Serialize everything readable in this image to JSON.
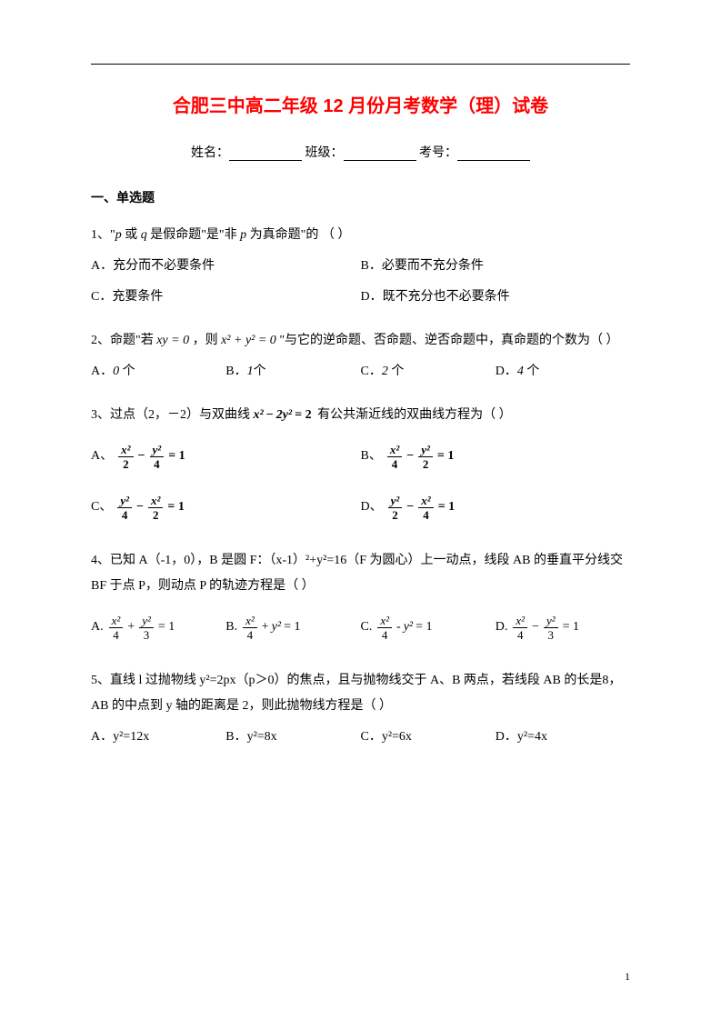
{
  "title_color": "#ff0000",
  "title": "合肥三中高二年级 12 月份月考数学（理）试卷",
  "info": {
    "name_label": "姓名：",
    "class_label": "班级：",
    "id_label": "考号："
  },
  "section1_header": "一、单选题",
  "q1": {
    "stem_pre": "1、\"",
    "stem_mid1": " 或 ",
    "stem_mid2": " 是假命题\"是\"非 ",
    "stem_post": " 为真命题\"的 （          ）",
    "p": "p",
    "q": "q",
    "optA": "A．充分而不必要条件",
    "optB": "B．必要而不充分条件",
    "optC": "C．充要条件",
    "optD": "D．既不充分也不必要条件"
  },
  "q2": {
    "stem_pre": "2、命题\"若",
    "eq1": "xy = 0",
    "stem_mid": "，则",
    "eq2": "x² + y² = 0",
    "stem_post": "\"与它的逆命题、否命题、逆否命题中，真命题的个数为（       ）",
    "optA_pre": "A．",
    "optA_val": "0",
    "optA_post": " 个",
    "optB_pre": "B．",
    "optB_val": "1",
    "optB_post": "个",
    "optC_pre": "C．",
    "optC_val": "2",
    "optC_post": " 个",
    "optD_pre": "D．",
    "optD_val": "4",
    "optD_post": " 个"
  },
  "q3": {
    "stem_pre": "3、过点（2，－2）与双曲线 ",
    "stem_post": "有公共渐近线的双曲线方程为（     ）",
    "eq_x2": "x²",
    "eq_minus": "−",
    "eq_2y2": "2y²",
    "eq_eq2": "= 2",
    "A_letter": "A、",
    "B_letter": "B、",
    "C_letter": "C、",
    "D_letter": "D、",
    "x2": "x²",
    "y2": "y²",
    "n2": "2",
    "n4": "4",
    "minus": "−",
    "eq1": "= 1"
  },
  "q4": {
    "stem": "4、已知 A（-1，0），B 是圆 F：（x-1）²+y²=16（F 为圆心）上一动点，线段 AB 的垂直平分线交 BF 于点 P，则动点 P 的轨迹方程是（    ）",
    "A": "A.",
    "B": "B.",
    "C": "C.",
    "D": "D.",
    "x2": "x²",
    "y2": "y²",
    "y2_plain": "y²",
    "n4": "4",
    "n3": "3",
    "plus": "+",
    "minus": "−",
    "eq1": "= 1"
  },
  "q5": {
    "stem": "5、直线 l 过抛物线 y²=2px（p＞0）的焦点，且与抛物线交于 A、B 两点，若线段 AB 的长是8，AB 的中点到 y 轴的距离是 2，则此抛物线方程是（     ）",
    "optA": "A．y²=12x",
    "optB": "B．y²=8x",
    "optC": "C．y²=6x",
    "optD": "D．y²=4x"
  },
  "page_num": "1"
}
